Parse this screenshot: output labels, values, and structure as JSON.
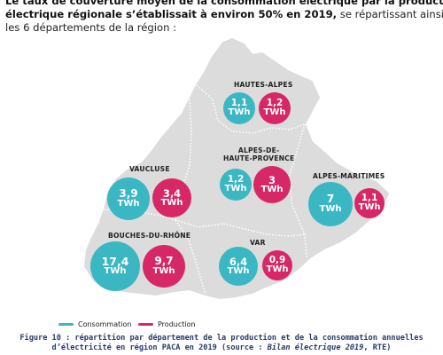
{
  "intro": {
    "line1": "Le taux de couverture moyen de la consommation électrique par la production",
    "line2_bold": "électrique régionale s’établissait à environ 50% en 2019,",
    "line2_rest": " se répartissant ainsi en",
    "line3": "les 6 départements de la région :"
  },
  "unit": "TWh",
  "departments": [
    {
      "id": "hautes-alpes",
      "label": "HAUTES-ALPES",
      "consumption": "1,1",
      "production": "1,2"
    },
    {
      "id": "vaucluse",
      "label": "VAUCLUSE",
      "consumption": "3,9",
      "production": "3,4"
    },
    {
      "id": "alpes-de-haute-provence",
      "label_line1": "ALPES-DE-",
      "label_line2": "HAUTE-PROVENCE",
      "consumption": "1,2",
      "production": "3"
    },
    {
      "id": "alpes-maritimes",
      "label": "ALPES-MARITIMES",
      "consumption": "7",
      "production": "1,1"
    },
    {
      "id": "bouches-du-rhone",
      "label": "BOUCHES-DU-RHÔNE",
      "consumption": "17,4",
      "production": "9,7"
    },
    {
      "id": "var",
      "label": "VAR",
      "consumption": "6,4",
      "production": "0,9"
    }
  ],
  "legend": {
    "consumption": "Consommation",
    "production": "Production"
  },
  "colors": {
    "consumption": "#3bb7c4",
    "production": "#d62866",
    "region_fill": "#dcdcdc",
    "borders": "#ffffff"
  },
  "caption": {
    "line1": "Figure 10 : répartition par département de la production et de la consommation annuelles",
    "line2_pre": "d’électricité en région PACA en 2019 (source : ",
    "line2_italic": "Bilan électrique 2019",
    "line2_post": ", RTE)"
  }
}
